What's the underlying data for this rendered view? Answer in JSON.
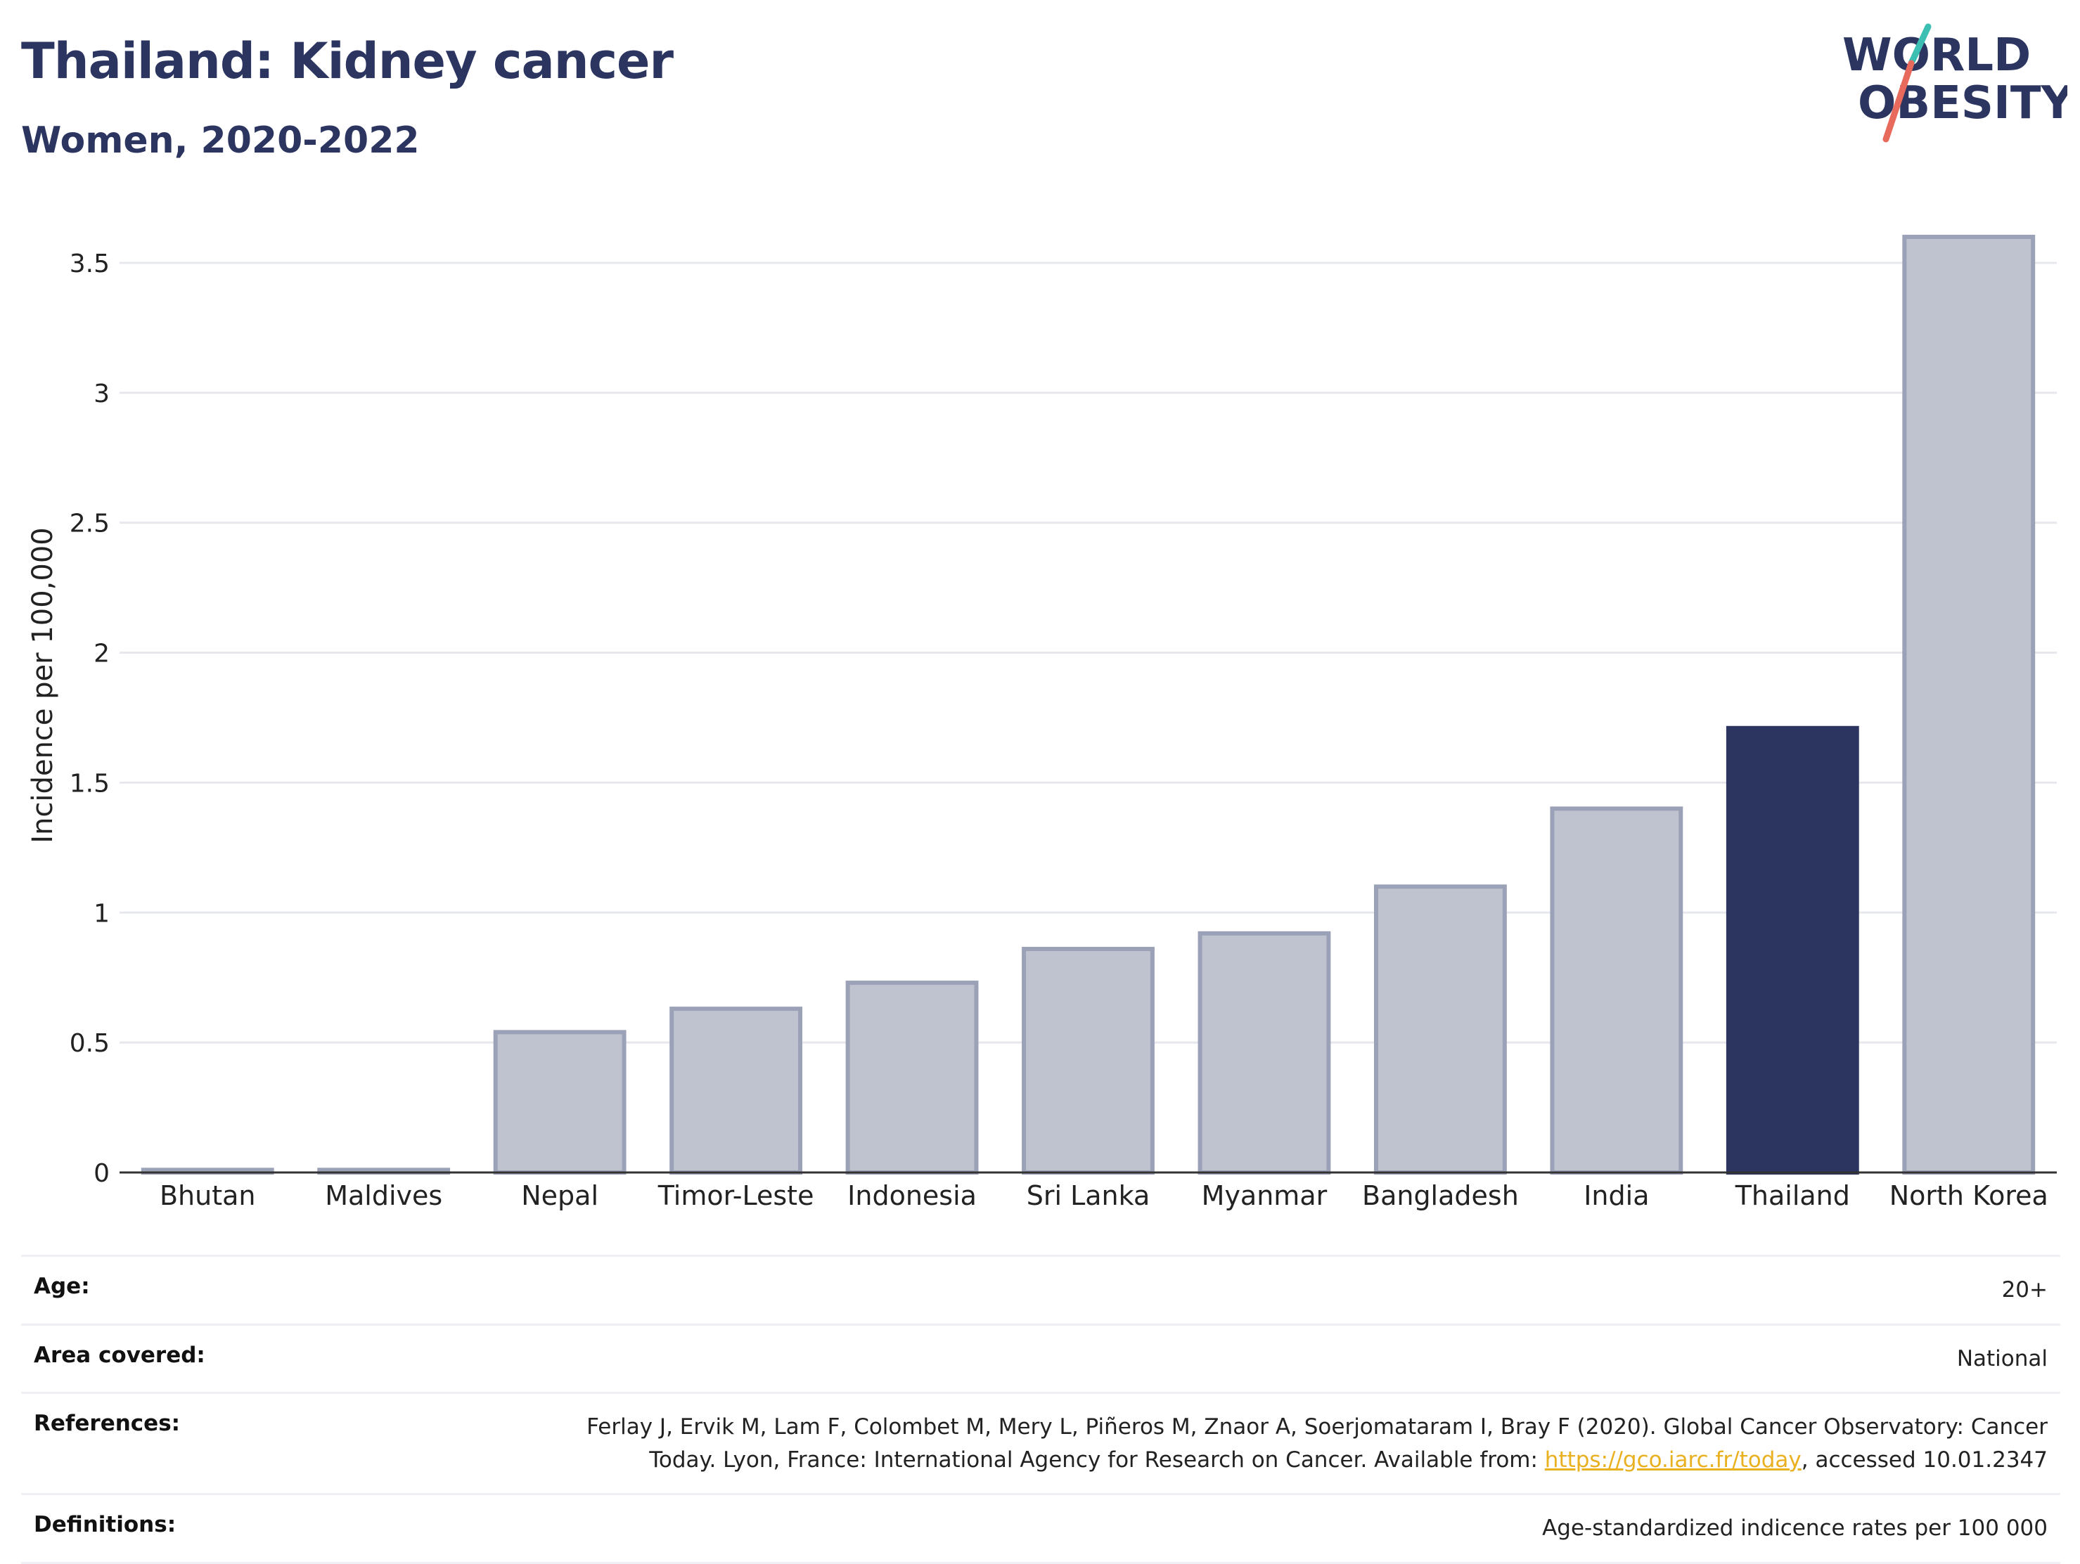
{
  "header": {
    "title": "Thailand: Kidney cancer",
    "subtitle": "Women, 2020-2022"
  },
  "logo": {
    "line1": "WORLD",
    "line2": "OBESITY",
    "accent_teal": "#3bbfb3",
    "accent_coral": "#e86a5c",
    "text_color": "#2b3560"
  },
  "chart_data": {
    "type": "bar",
    "categories": [
      "Bhutan",
      "Maldives",
      "Nepal",
      "Timor-Leste",
      "Indonesia",
      "Sri Lanka",
      "Myanmar",
      "Bangladesh",
      "India",
      "Thailand",
      "North Korea"
    ],
    "values": [
      0.01,
      0.01,
      0.54,
      0.63,
      0.73,
      0.86,
      0.92,
      1.1,
      1.4,
      1.71,
      3.6
    ],
    "highlight": "Thailand",
    "ylabel": "Incidence per 100,000",
    "xlabel": "",
    "ylim": [
      0,
      3.7
    ],
    "yticks": [
      0,
      0.5,
      1,
      1.5,
      2,
      2.5,
      3,
      3.5
    ],
    "ytick_labels": [
      "0",
      "0.5",
      "1",
      "1.5",
      "2",
      "2.5",
      "3",
      "3.5"
    ],
    "grid": true,
    "colors": {
      "bar": "#bfc3cf",
      "bar_edge": "#9ba1b7",
      "highlight": "#2b3560",
      "grid": "#e6e8ee",
      "axis": "#333333"
    }
  },
  "info": {
    "age_label": "Age:",
    "age_value": "20+",
    "area_label": "Area covered:",
    "area_value": "National",
    "references_label": "References:",
    "references_text": "Ferlay J, Ervik M, Lam F, Colombet M, Mery L, Piñeros M, Znaor A, Soerjomataram I, Bray F (2020). Global Cancer Observatory: Cancer Today. Lyon, France: International Agency for Research on Cancer. Available from: ",
    "references_link": "https://gco.iarc.fr/today",
    "references_suffix": ", accessed 10.01.2347",
    "definitions_label": "Definitions:",
    "definitions_value": "Age-standardized indicence rates per 100 000"
  }
}
